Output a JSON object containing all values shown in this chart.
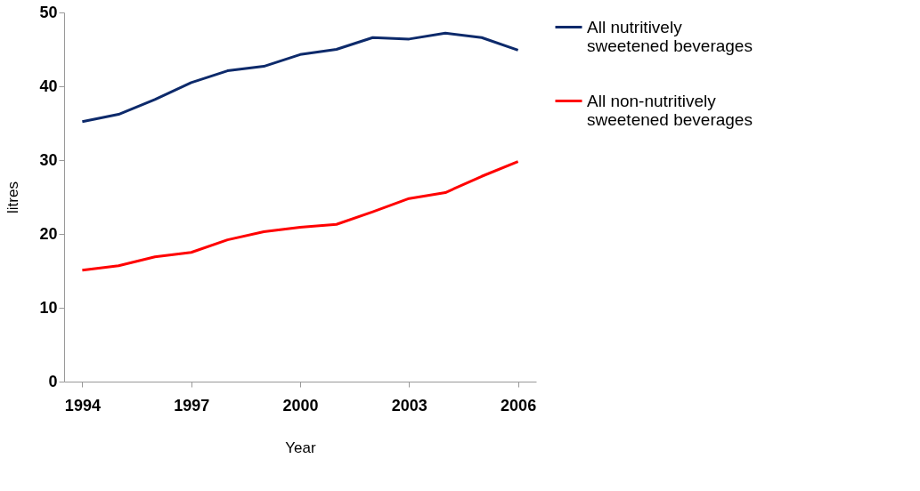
{
  "chart_data": {
    "type": "line",
    "xlabel": "Year",
    "ylabel": "litres",
    "x": [
      1994,
      1995,
      1996,
      1997,
      1998,
      1999,
      2000,
      2001,
      2002,
      2003,
      2004,
      2005,
      2006
    ],
    "series": [
      {
        "name": "All nutritively sweetened beverages",
        "color": "#0d2a6b",
        "values": [
          35.2,
          36.2,
          38.2,
          40.5,
          42.1,
          42.7,
          44.3,
          45.0,
          46.6,
          46.4,
          47.2,
          46.6,
          44.9
        ]
      },
      {
        "name": "All non-nutritively sweetened beverages",
        "color": "#ff0000",
        "values": [
          15.1,
          15.7,
          16.9,
          17.5,
          19.2,
          20.3,
          20.9,
          21.3,
          23.0,
          24.8,
          25.6,
          27.8,
          29.8
        ]
      }
    ],
    "xlim": [
      1993.5,
      2006.5
    ],
    "xticks": [
      1994,
      1997,
      2000,
      2003,
      2006
    ],
    "ylim": [
      0,
      50
    ],
    "yticks": [
      0,
      10,
      20,
      30,
      40,
      50
    ],
    "grid": false,
    "legend": "right",
    "line_style": "solid",
    "marker": "none"
  }
}
